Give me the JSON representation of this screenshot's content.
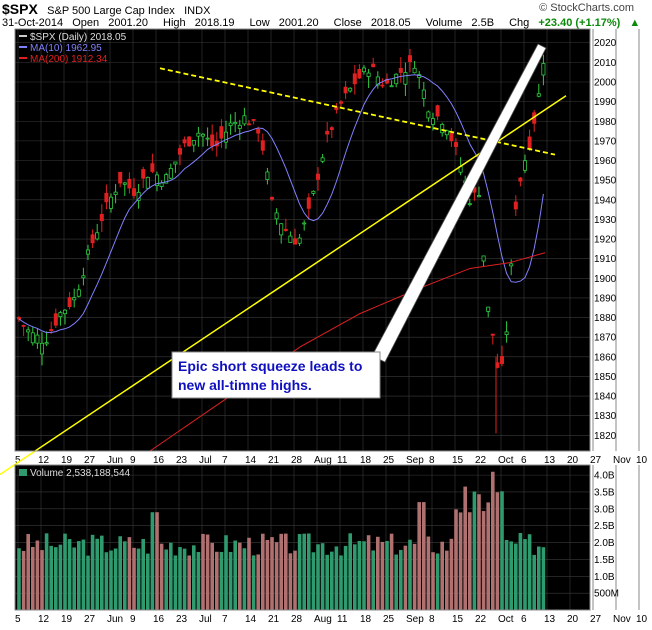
{
  "header": {
    "symbol": "$SPX",
    "name": "S&P 500 Large Cap Index",
    "exchange": "INDX",
    "brand": "© StockCharts.com",
    "date": "31-Oct-2014",
    "open_label": "Open",
    "open": "2001.20",
    "high_label": "High",
    "high": "2018.19",
    "low_label": "Low",
    "low": "2001.20",
    "close_label": "Close",
    "close": "2018.05",
    "volume_label": "Volume",
    "volume": "2.5B",
    "chg_label": "Chg",
    "chg": "+23.40 (+1.17%)",
    "chg_arrow": "▲"
  },
  "legend": {
    "price": "$SPX (Daily) 2018.05",
    "ma10": "MA(10) 1962.95",
    "ma200": "MA(200) 1912.34",
    "volume": "Volume 2,538,188,544"
  },
  "annotation": {
    "line1": "Epic short squeeze leads to",
    "line2": "new all-timne highs."
  },
  "colors": {
    "background": "#000000",
    "up_candle": "#2ecc40",
    "down_candle": "#e02020",
    "ma10": "#8080ff",
    "ma200": "#e02020",
    "trendline": "#ffff00",
    "arrow": "#ffffff",
    "volume_up": "#2e9a6e",
    "volume_down": "#b07070",
    "annotation_text": "#1010c0"
  },
  "chart_data": [
    {
      "type": "candlestick",
      "title": "$SPX (Daily) 2018.05",
      "ylim": [
        1812,
        2027
      ],
      "y_ticks": [
        1820,
        1830,
        1840,
        1850,
        1860,
        1870,
        1880,
        1890,
        1900,
        1910,
        1920,
        1930,
        1940,
        1950,
        1960,
        1970,
        1980,
        1990,
        2000,
        2010,
        2020
      ],
      "x_ticks": [
        "5",
        "12",
        "19",
        "27",
        "Jun",
        "9",
        "16",
        "23",
        "Jul",
        "7",
        "14",
        "21",
        "28",
        "Aug",
        "11",
        "18",
        "25",
        "Sep",
        "8",
        "15",
        "22",
        "Oct",
        "6",
        "13",
        "20",
        "27",
        "Nov",
        "10"
      ],
      "series": [
        {
          "name": "MA(10) 1962.95",
          "kind": "moving-average"
        },
        {
          "name": "MA(200) 1912.34",
          "kind": "moving-average"
        }
      ],
      "annotations": [
        "Epic short squeeze leads to",
        "new all-timne highs."
      ],
      "grid": true
    },
    {
      "type": "bar",
      "title": "Volume 2,538,188,544",
      "ylim": [
        0,
        4.3
      ],
      "y_tick_labels": [
        "500M",
        "1.0B",
        "1.5B",
        "2.0B",
        "2.5B",
        "3.0B",
        "3.5B",
        "4.0B"
      ],
      "y_tick_values": [
        0.5,
        1.0,
        1.5,
        2.0,
        2.5,
        3.0,
        3.5,
        4.0
      ],
      "grid": true
    }
  ]
}
